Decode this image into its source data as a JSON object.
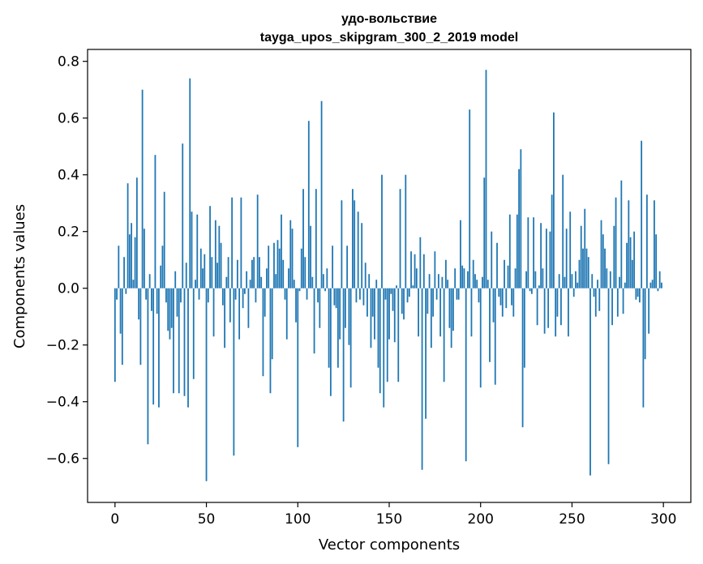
{
  "chart_data": {
    "type": "bar",
    "title": [
      "удо-вольствие",
      "tayga_upos_skipgram_300_2_2019 model"
    ],
    "xlabel": "Vector components",
    "ylabel": "Components values",
    "xlim": [
      -15.0,
      315.0
    ],
    "ylim": [
      -0.755,
      0.842
    ],
    "xticks": [
      0,
      50,
      100,
      150,
      200,
      250,
      300
    ],
    "yticks": [
      -0.6,
      -0.4,
      -0.2,
      0.0,
      0.2,
      0.4,
      0.6,
      0.8
    ],
    "ytick_labels": [
      "−0.6",
      "−0.4",
      "−0.2",
      "0.0",
      "0.2",
      "0.4",
      "0.6",
      "0.8"
    ],
    "grid": false,
    "color": "#1f77b4",
    "x": "indices 0..299",
    "values": [
      -0.33,
      -0.04,
      0.15,
      -0.16,
      -0.27,
      0.11,
      -0.02,
      0.37,
      0.19,
      0.23,
      0.03,
      0.18,
      0.39,
      -0.11,
      -0.27,
      0.7,
      0.21,
      -0.04,
      -0.55,
      0.05,
      -0.08,
      -0.41,
      0.47,
      -0.09,
      -0.42,
      0.08,
      0.15,
      0.34,
      -0.05,
      -0.15,
      -0.18,
      -0.14,
      -0.37,
      0.06,
      -0.1,
      -0.37,
      -0.05,
      0.51,
      -0.38,
      0.09,
      -0.42,
      0.74,
      0.27,
      -0.32,
      0.03,
      0.26,
      -0.04,
      0.14,
      0.07,
      0.12,
      -0.68,
      -0.05,
      0.29,
      0.11,
      -0.17,
      0.24,
      0.09,
      0.22,
      0.16,
      -0.06,
      -0.21,
      0.04,
      0.11,
      -0.12,
      0.32,
      -0.59,
      -0.04,
      0.1,
      -0.18,
      0.32,
      -0.07,
      -0.02,
      0.06,
      -0.14,
      0.03,
      0.1,
      0.11,
      -0.05,
      0.33,
      0.11,
      0.04,
      -0.31,
      -0.1,
      0.07,
      0.15,
      -0.37,
      -0.25,
      0.16,
      0.05,
      0.17,
      0.14,
      0.26,
      0.1,
      -0.04,
      -0.18,
      0.07,
      0.24,
      0.21,
      0.03,
      -0.12,
      -0.56,
      -0.01,
      0.14,
      0.35,
      0.11,
      -0.04,
      0.59,
      0.22,
      0.04,
      -0.23,
      0.35,
      -0.05,
      -0.14,
      0.66,
      0.05,
      -0.01,
      0.07,
      -0.28,
      -0.38,
      0.15,
      -0.06,
      -0.07,
      -0.28,
      -0.18,
      0.31,
      -0.47,
      -0.14,
      0.15,
      -0.2,
      -0.35,
      0.35,
      0.31,
      -0.05,
      0.27,
      -0.04,
      0.23,
      -0.06,
      0.09,
      -0.1,
      0.05,
      -0.21,
      -0.1,
      -0.18,
      0.03,
      -0.28,
      -0.37,
      0.4,
      -0.42,
      -0.04,
      -0.33,
      -0.18,
      -0.02,
      -0.08,
      -0.19,
      0.01,
      -0.33,
      0.35,
      -0.09,
      -0.11,
      0.4,
      -0.05,
      -0.03,
      0.13,
      0.01,
      0.12,
      0.07,
      -0.17,
      0.18,
      -0.64,
      0.12,
      -0.46,
      -0.09,
      0.05,
      -0.21,
      -0.1,
      0.13,
      -0.04,
      0.05,
      -0.17,
      0.04,
      -0.33,
      0.1,
      0.03,
      -0.14,
      -0.21,
      -0.15,
      0.07,
      -0.04,
      -0.04,
      0.24,
      0.08,
      0.07,
      -0.61,
      0.06,
      0.63,
      -0.17,
      0.1,
      0.05,
      0.03,
      -0.05,
      -0.35,
      0.04,
      0.39,
      0.77,
      0.03,
      -0.26,
      0.2,
      -0.12,
      -0.34,
      0.16,
      -0.03,
      -0.06,
      -0.1,
      0.1,
      -0.07,
      0.08,
      0.26,
      -0.06,
      -0.1,
      0.07,
      0.26,
      0.42,
      0.49,
      -0.49,
      -0.28,
      0.06,
      0.25,
      -0.01,
      -0.02,
      0.25,
      0.06,
      -0.13,
      0.01,
      0.23,
      0.07,
      -0.16,
      0.21,
      -0.14,
      0.2,
      0.33,
      0.62,
      -0.17,
      -0.1,
      0.05,
      -0.13,
      0.4,
      0.04,
      0.21,
      -0.17,
      0.27,
      0.05,
      -0.03,
      0.06,
      0.02,
      0.1,
      0.22,
      0.14,
      0.28,
      0.14,
      0.11,
      -0.66,
      0.05,
      -0.03,
      -0.1,
      0.03,
      -0.08,
      0.24,
      0.19,
      0.14,
      0.07,
      -0.62,
      0.06,
      -0.13,
      0.22,
      0.32,
      -0.1,
      0.04,
      0.38,
      -0.09,
      0.02,
      0.16,
      0.31,
      0.18,
      0.1,
      0.2,
      -0.04,
      -0.03,
      -0.05,
      0.52,
      -0.42,
      -0.25,
      0.33,
      -0.16,
      0.02,
      0.03,
      0.31,
      0.19,
      -0.01,
      0.06,
      0.02
    ]
  }
}
